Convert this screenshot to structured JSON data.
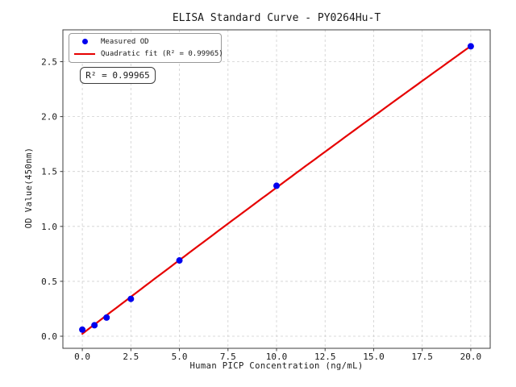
{
  "chart_data": {
    "type": "scatter",
    "title": "ELISA Standard Curve - PY0264Hu-T",
    "xlabel": "Human PICP Concentration (ng/mL)",
    "ylabel": "OD Value(450nm)",
    "xlim": [
      -1.0,
      21.0
    ],
    "ylim": [
      -0.11,
      2.79
    ],
    "x_tick_values": [
      0.0,
      2.5,
      5.0,
      7.5,
      10.0,
      12.5,
      15.0,
      17.5,
      20.0
    ],
    "x_tick_labels": [
      "0.0",
      "2.5",
      "5.0",
      "7.5",
      "10.0",
      "12.5",
      "15.0",
      "17.5",
      "20.0"
    ],
    "y_tick_values": [
      0.0,
      0.5,
      1.0,
      1.5,
      2.0,
      2.5
    ],
    "y_tick_labels": [
      "0.0",
      "0.5",
      "1.0",
      "1.5",
      "2.0",
      "2.5"
    ],
    "grid": true,
    "grid_style": "dashed",
    "legend_position": "upper-left",
    "series": [
      {
        "name": "Measured OD",
        "type": "scatter",
        "marker": "circle",
        "color": "#0000ee",
        "x": [
          0,
          0.625,
          1.25,
          2.5,
          5,
          10,
          20
        ],
        "y": [
          0.06,
          0.1,
          0.17,
          0.34,
          0.69,
          1.37,
          2.64
        ]
      },
      {
        "name": "Quadratic fit (R² = 0.99965)",
        "type": "line",
        "color": "#e60000",
        "fit": {
          "kind": "quadratic",
          "a": -0.000214,
          "b": 0.1353,
          "c": 0.022,
          "x_range": [
            0,
            20
          ],
          "r_squared": 0.99965
        }
      }
    ],
    "annotation": {
      "text": "R² = 0.99965"
    },
    "colors": {
      "grid": "#cfcfcf",
      "spine": "#3c3c3c",
      "text": "#1a1a1a",
      "legend_border": "#999999",
      "annotation_border": "#3c3c3c"
    }
  }
}
